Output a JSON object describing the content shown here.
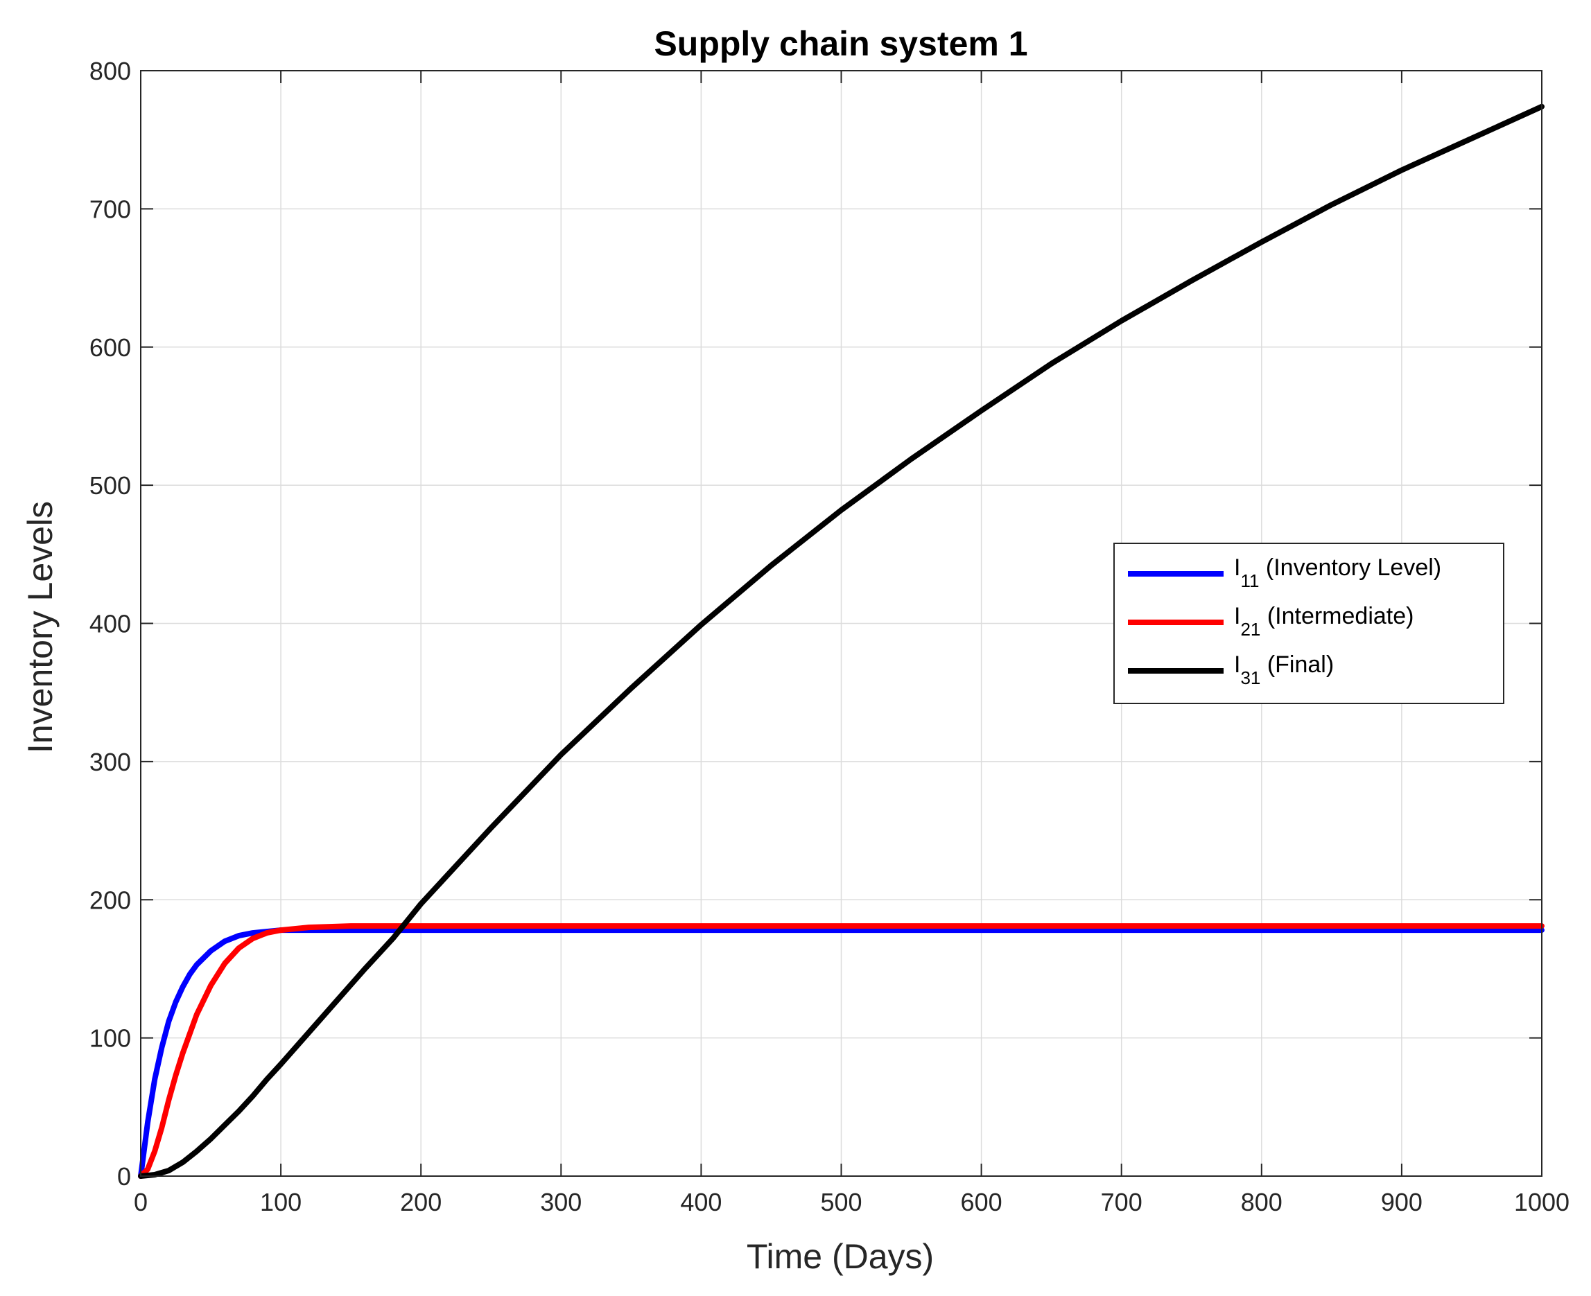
{
  "chart_data": {
    "type": "line",
    "title": "Supply chain system 1",
    "xlabel": "Time (Days)",
    "ylabel": "Inventory Levels",
    "xlim": [
      0,
      1000
    ],
    "ylim": [
      0,
      800
    ],
    "xticks": [
      0,
      100,
      200,
      300,
      400,
      500,
      600,
      700,
      800,
      900,
      1000
    ],
    "yticks": [
      0,
      100,
      200,
      300,
      400,
      500,
      600,
      700,
      800
    ],
    "grid": true,
    "legend_position": "right",
    "series": [
      {
        "name_main": "I",
        "name_sub": "11",
        "name_rest": " (Inventory Level)",
        "color": "#0000ff",
        "x": [
          0,
          5,
          10,
          15,
          20,
          25,
          30,
          35,
          40,
          50,
          60,
          70,
          80,
          90,
          100,
          120,
          150,
          200,
          300,
          500,
          700,
          1000
        ],
        "y": [
          0,
          39,
          70,
          93,
          112,
          126,
          137,
          146,
          153,
          163,
          170,
          174,
          176,
          177,
          178,
          178,
          178,
          178,
          178,
          178,
          178,
          178
        ]
      },
      {
        "name_main": "I",
        "name_sub": "21",
        "name_rest": " (Intermediate)",
        "color": "#ff0000",
        "x": [
          0,
          5,
          10,
          15,
          20,
          25,
          30,
          40,
          50,
          60,
          70,
          80,
          90,
          100,
          120,
          150,
          200,
          300,
          500,
          700,
          1000
        ],
        "y": [
          0,
          5,
          18,
          35,
          55,
          73,
          89,
          117,
          138,
          154,
          165,
          172,
          176,
          178,
          180,
          181,
          181,
          181,
          181,
          181,
          181
        ]
      },
      {
        "name_main": "I",
        "name_sub": "31",
        "name_rest": " (Final)",
        "color": "#000000",
        "x": [
          0,
          10,
          20,
          30,
          40,
          50,
          60,
          70,
          80,
          90,
          100,
          120,
          140,
          160,
          180,
          200,
          250,
          300,
          350,
          400,
          450,
          500,
          550,
          600,
          650,
          700,
          750,
          800,
          850,
          900,
          950,
          1000
        ],
        "y": [
          0,
          1,
          4,
          10,
          18,
          27,
          37,
          47,
          58,
          70,
          81,
          104,
          127,
          150,
          172,
          197,
          252,
          305,
          353,
          399,
          442,
          482,
          519,
          554,
          588,
          619,
          648,
          676,
          703,
          728,
          751,
          774
        ]
      }
    ]
  }
}
